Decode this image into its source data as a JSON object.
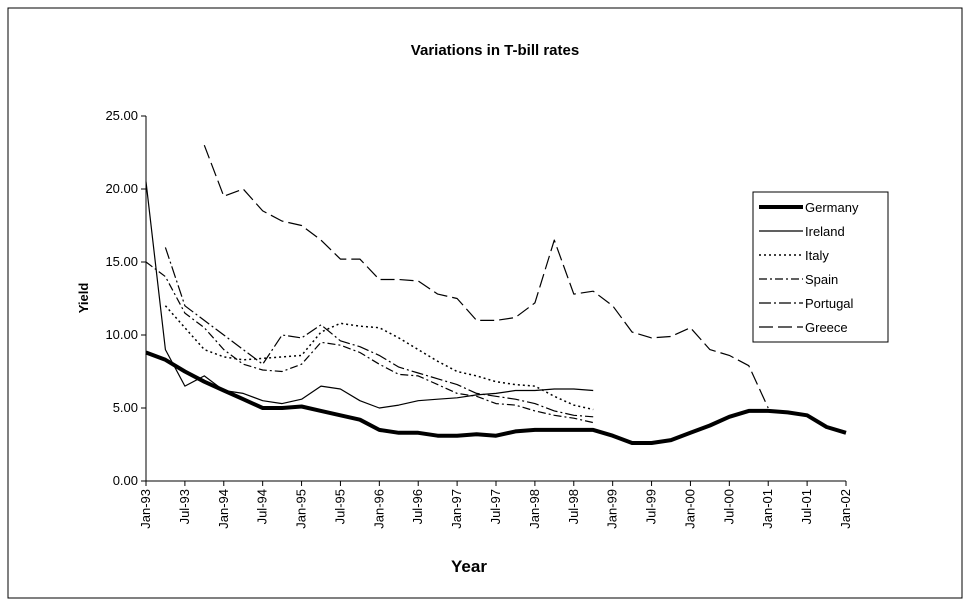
{
  "chart_data": {
    "type": "line",
    "title": "Variations in T-bill rates",
    "x_label": "Year",
    "y_label": "Yield",
    "categories": [
      "Jan-93",
      null,
      "Jul-93",
      null,
      "Jan-94",
      null,
      "Jul-94",
      null,
      "Jan-95",
      null,
      "Jul-95",
      null,
      "Jan-96",
      null,
      "Jul-96",
      null,
      "Jan-97",
      null,
      "Jul-97",
      null,
      "Jan-98",
      null,
      "Jul-98",
      null,
      "Jan-99",
      null,
      "Jul-99",
      null,
      "Jan-00",
      null,
      "Jul-00",
      null,
      "Jan-01",
      null,
      "Jul-01",
      null,
      "Jan-02"
    ],
    "ylim": [
      0,
      25
    ],
    "yticks": [
      {
        "value": 0,
        "label": "0.00"
      },
      {
        "value": 5,
        "label": "5.00"
      },
      {
        "value": 10,
        "label": "10.00"
      },
      {
        "value": 15,
        "label": "15.00"
      },
      {
        "value": 20,
        "label": "20.00"
      },
      {
        "value": 25,
        "label": "25.00"
      }
    ],
    "legend": "right",
    "series": [
      {
        "name": "Germany",
        "color": "#000000",
        "line_style": "solid",
        "line_width": 4,
        "values": [
          8.8,
          8.3,
          7.5,
          6.8,
          6.2,
          5.6,
          5.0,
          5.0,
          5.1,
          4.8,
          4.5,
          4.2,
          3.5,
          3.3,
          3.3,
          3.1,
          3.1,
          3.2,
          3.1,
          3.4,
          3.5,
          3.5,
          3.5,
          3.5,
          3.1,
          2.6,
          2.6,
          2.8,
          3.3,
          3.8,
          4.4,
          4.8,
          4.8,
          4.7,
          4.5,
          3.7,
          3.3
        ]
      },
      {
        "name": "Ireland",
        "color": "#000000",
        "line_style": "solid",
        "line_width": 1.2,
        "values": [
          20.5,
          9.0,
          6.5,
          7.2,
          6.2,
          6.0,
          5.5,
          5.3,
          5.6,
          6.5,
          6.3,
          5.5,
          5.0,
          5.2,
          5.5,
          5.6,
          5.7,
          5.9,
          6.0,
          6.2,
          6.2,
          6.3,
          6.3,
          6.2,
          null,
          null,
          null,
          null,
          null,
          null,
          null,
          null,
          null,
          null,
          null,
          null,
          null
        ]
      },
      {
        "name": "Italy",
        "color": "#000000",
        "line_style": "dotted",
        "line_width": 1.5,
        "values": [
          null,
          12.0,
          10.5,
          9.0,
          8.5,
          8.3,
          8.4,
          8.5,
          8.6,
          10.2,
          10.8,
          10.6,
          10.5,
          9.8,
          9.0,
          8.2,
          7.5,
          7.2,
          6.8,
          6.6,
          6.5,
          5.8,
          5.2,
          4.9,
          null,
          null,
          null,
          null,
          null,
          null,
          null,
          null,
          null,
          null,
          null,
          null,
          null
        ]
      },
      {
        "name": "Spain",
        "color": "#000000",
        "line_style": "dash-dot",
        "line_width": 1.2,
        "values": [
          15.0,
          14.0,
          11.5,
          10.5,
          9.0,
          8.0,
          7.6,
          7.5,
          8.0,
          9.5,
          9.3,
          8.8,
          8.0,
          7.3,
          7.2,
          6.6,
          6.0,
          5.8,
          5.3,
          5.2,
          4.8,
          4.5,
          4.3,
          4.0,
          null,
          null,
          null,
          null,
          null,
          null,
          null,
          null,
          null,
          null,
          null,
          null,
          null
        ]
      },
      {
        "name": "Portugal",
        "color": "#000000",
        "line_style": "long-dash-dot",
        "line_width": 1.2,
        "values": [
          null,
          16.0,
          12.0,
          11.0,
          10.0,
          9.0,
          8.0,
          10.0,
          9.8,
          10.7,
          9.6,
          9.2,
          8.6,
          7.8,
          7.4,
          7.0,
          6.6,
          6.0,
          5.8,
          5.6,
          5.3,
          4.8,
          4.5,
          4.4,
          null,
          null,
          null,
          null,
          null,
          null,
          null,
          null,
          null,
          null,
          null,
          null,
          null
        ]
      },
      {
        "name": "Greece",
        "color": "#000000",
        "line_style": "long-dash",
        "line_width": 1.2,
        "values": [
          null,
          null,
          null,
          23.0,
          19.5,
          20.0,
          18.5,
          17.8,
          17.5,
          16.5,
          15.2,
          15.2,
          13.8,
          13.8,
          13.7,
          12.8,
          12.5,
          11.0,
          11.0,
          11.2,
          12.2,
          16.5,
          12.8,
          13.0,
          12.0,
          10.2,
          9.8,
          9.9,
          10.5,
          9.0,
          8.6,
          7.9,
          5.0,
          null,
          null,
          null,
          null
        ]
      }
    ]
  }
}
